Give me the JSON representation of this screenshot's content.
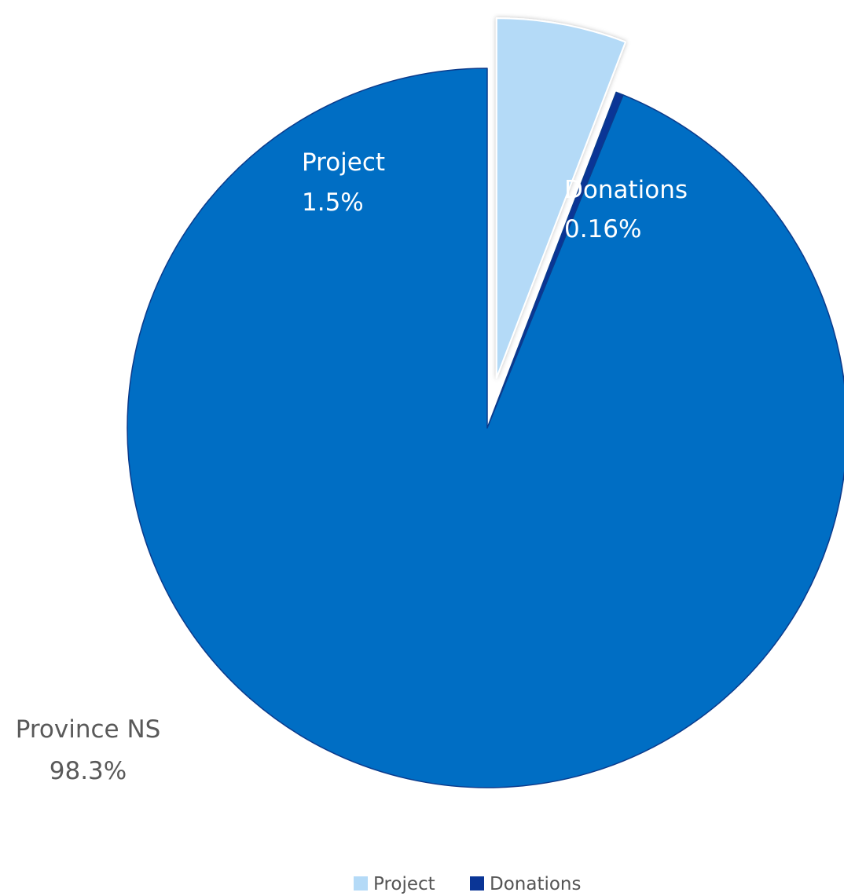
{
  "chart_data": {
    "type": "pie",
    "title": "",
    "start_angle_deg": 0,
    "direction": "clockwise",
    "slices": [
      {
        "name": "Project",
        "label_name": "Project",
        "label_value": "1.5%",
        "value": 1.5,
        "color": "#B4DAF7",
        "exploded": true,
        "label_color": "#ffffff"
      },
      {
        "name": "Donations",
        "label_name": "Donations",
        "label_value": "0.16%",
        "value": 0.16,
        "color": "#0A3596",
        "exploded": false,
        "label_color": "#ffffff"
      },
      {
        "name": "Province NS",
        "label_name": "Province NS",
        "label_value": "98.3%",
        "value": 98.3,
        "color": "#006EC4",
        "exploded": false,
        "label_color": "#595959"
      }
    ],
    "legend": {
      "position": "bottom",
      "entries": [
        {
          "name": "Project",
          "color": "#B4DAF7"
        },
        {
          "name": "Donations",
          "color": "#0A3596"
        }
      ]
    }
  }
}
